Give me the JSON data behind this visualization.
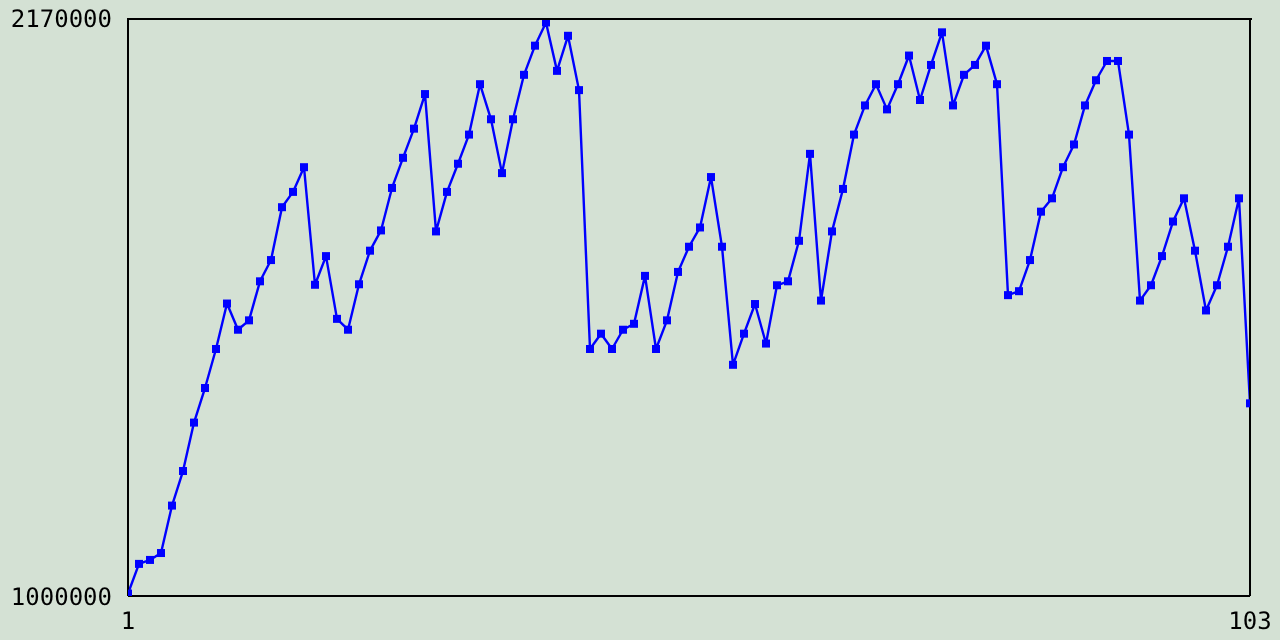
{
  "chart_data": {
    "type": "line",
    "x": [
      1,
      2,
      3,
      4,
      5,
      6,
      7,
      8,
      9,
      10,
      11,
      12,
      13,
      14,
      15,
      16,
      17,
      18,
      19,
      20,
      21,
      22,
      23,
      24,
      25,
      26,
      27,
      28,
      29,
      30,
      31,
      32,
      33,
      34,
      35,
      36,
      37,
      38,
      39,
      40,
      41,
      42,
      43,
      44,
      45,
      46,
      47,
      48,
      49,
      50,
      51,
      52,
      53,
      54,
      55,
      56,
      57,
      58,
      59,
      60,
      61,
      62,
      63,
      64,
      65,
      66,
      67,
      68,
      69,
      70,
      71,
      72,
      73,
      74,
      75,
      76,
      77,
      78,
      79,
      80,
      81,
      82,
      83,
      84,
      85,
      86,
      87,
      88,
      89,
      90,
      91,
      92,
      93,
      94,
      95,
      96,
      97,
      98,
      99,
      100,
      101,
      102,
      103
    ],
    "series": [
      {
        "color": "#0000ff",
        "values": [
          1005000,
          1065000,
          1073000,
          1087000,
          1183000,
          1253000,
          1351000,
          1421000,
          1500000,
          1592000,
          1539000,
          1558000,
          1637000,
          1680000,
          1787000,
          1818000,
          1868000,
          1630000,
          1688000,
          1561000,
          1539000,
          1631000,
          1699000,
          1740000,
          1826000,
          1887000,
          1946000,
          2016000,
          1738000,
          1818000,
          1875000,
          1934000,
          2036000,
          1965000,
          1856000,
          1965000,
          2055000,
          2114000,
          2161000,
          2063000,
          2134000,
          2024000,
          1500000,
          1531000,
          1500000,
          1539000,
          1551000,
          1648000,
          1500000,
          1558000,
          1656000,
          1707000,
          1746000,
          1848000,
          1707000,
          1468000,
          1531000,
          1591000,
          1511000,
          1629000,
          1637000,
          1719000,
          1895000,
          1598000,
          1738000,
          1824000,
          1934000,
          1993000,
          2036000,
          1985000,
          2036000,
          2094000,
          2004000,
          2075000,
          2141000,
          1993000,
          2055000,
          2075000,
          2114000,
          2036000,
          1609000,
          1617000,
          1680000,
          1778000,
          1805000,
          1868000,
          1914000,
          1993000,
          2044000,
          2083000,
          2083000,
          1934000,
          1598000,
          1629000,
          1688000,
          1758000,
          1805000,
          1699000,
          1578000,
          1629000,
          1707000,
          1805000,
          1390000
        ]
      }
    ],
    "xlim": [
      1,
      103
    ],
    "xticks": [
      1,
      103
    ],
    "ylim": [
      1000000,
      2170000
    ],
    "yticks": [
      1000000,
      2170000
    ],
    "marker": "square",
    "line_style": "solid",
    "grid": false,
    "legend": false
  }
}
